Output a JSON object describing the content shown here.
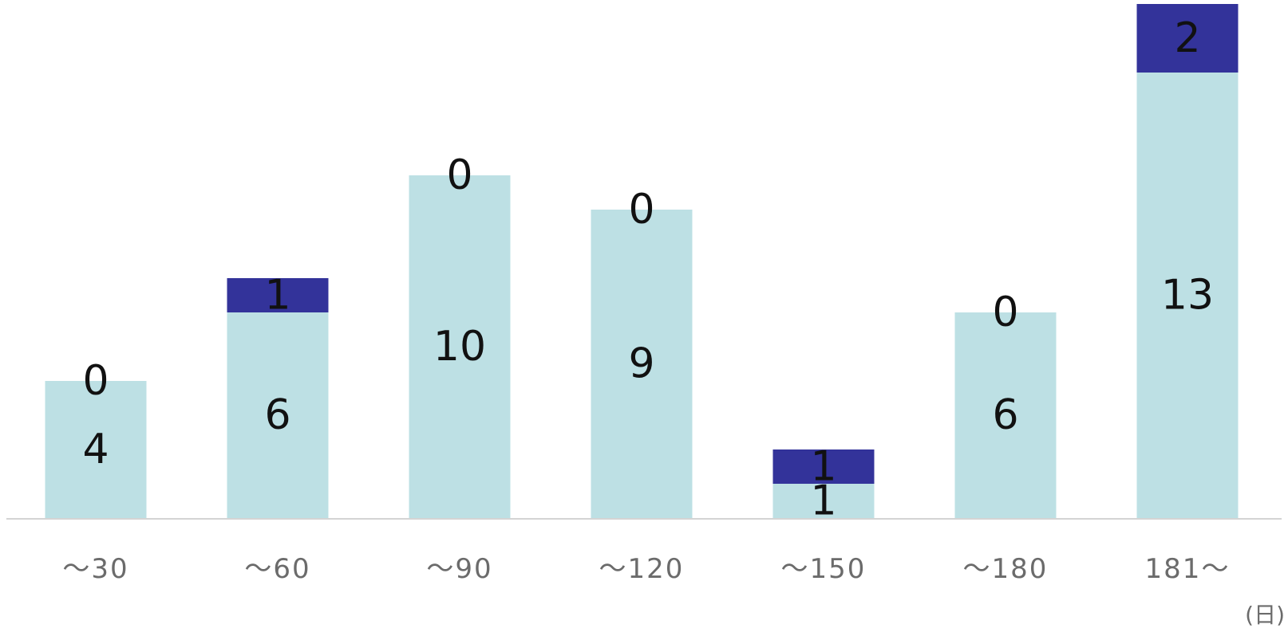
{
  "chart_data": {
    "type": "bar",
    "stacked": true,
    "categories": [
      "～30",
      "～60",
      "～90",
      "～120",
      "～150",
      "～180",
      "181～"
    ],
    "series": [
      {
        "color": "#bde0e4",
        "values": [
          4,
          6,
          10,
          9,
          1,
          6,
          13
        ]
      },
      {
        "color": "#33339a",
        "values": [
          0,
          1,
          0,
          0,
          1,
          0,
          2
        ]
      }
    ],
    "unit": "(日)",
    "ylim": [
      0,
      15
    ],
    "grid": false,
    "legend": "none"
  }
}
